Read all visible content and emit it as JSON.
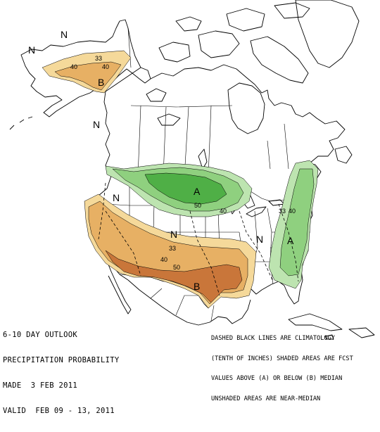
{
  "map": {
    "info_lines": [
      "6-10 DAY OUTLOOK",
      "PRECIPITATION PROBABILITY",
      "MADE  3 FEB 2011",
      "VALID  FEB 09 - 13, 2011"
    ],
    "legend_lines": [
      "DASHED BLACK LINES ARE CLIMATOLOGY",
      "(TENTH OF INCHES) SHADED AREAS ARE FCST",
      "VALUES ABOVE (A) OR BELOW (B) MEDIAN",
      "UNSHADED AREAS ARE NEAR-MEDIAN"
    ],
    "region_labels": {
      "n_1": "N",
      "n_2": "N",
      "n_3": "N",
      "n_4": "N",
      "n_5": "N",
      "n_6": "N",
      "b_alaska": "B",
      "b_south": "B",
      "a_north": "A",
      "a_east": "A"
    },
    "contour_labels": {
      "c33_alaska": "33",
      "c40_alaska_1": "40",
      "c40_alaska_2": "40",
      "c50_north": "50",
      "c40_north": "40",
      "c33_east": "33",
      "c40_east": "40",
      "c33_south": "33",
      "c40_south": "40",
      "c50_south": "50"
    },
    "colors": {
      "below_33": "#f5d99a",
      "below_40": "#e7b064",
      "below_50": "#c9763a",
      "above_33": "#bde4b0",
      "above_40": "#8fd07f",
      "above_50": "#4faf46",
      "outline": "#000000"
    }
  }
}
